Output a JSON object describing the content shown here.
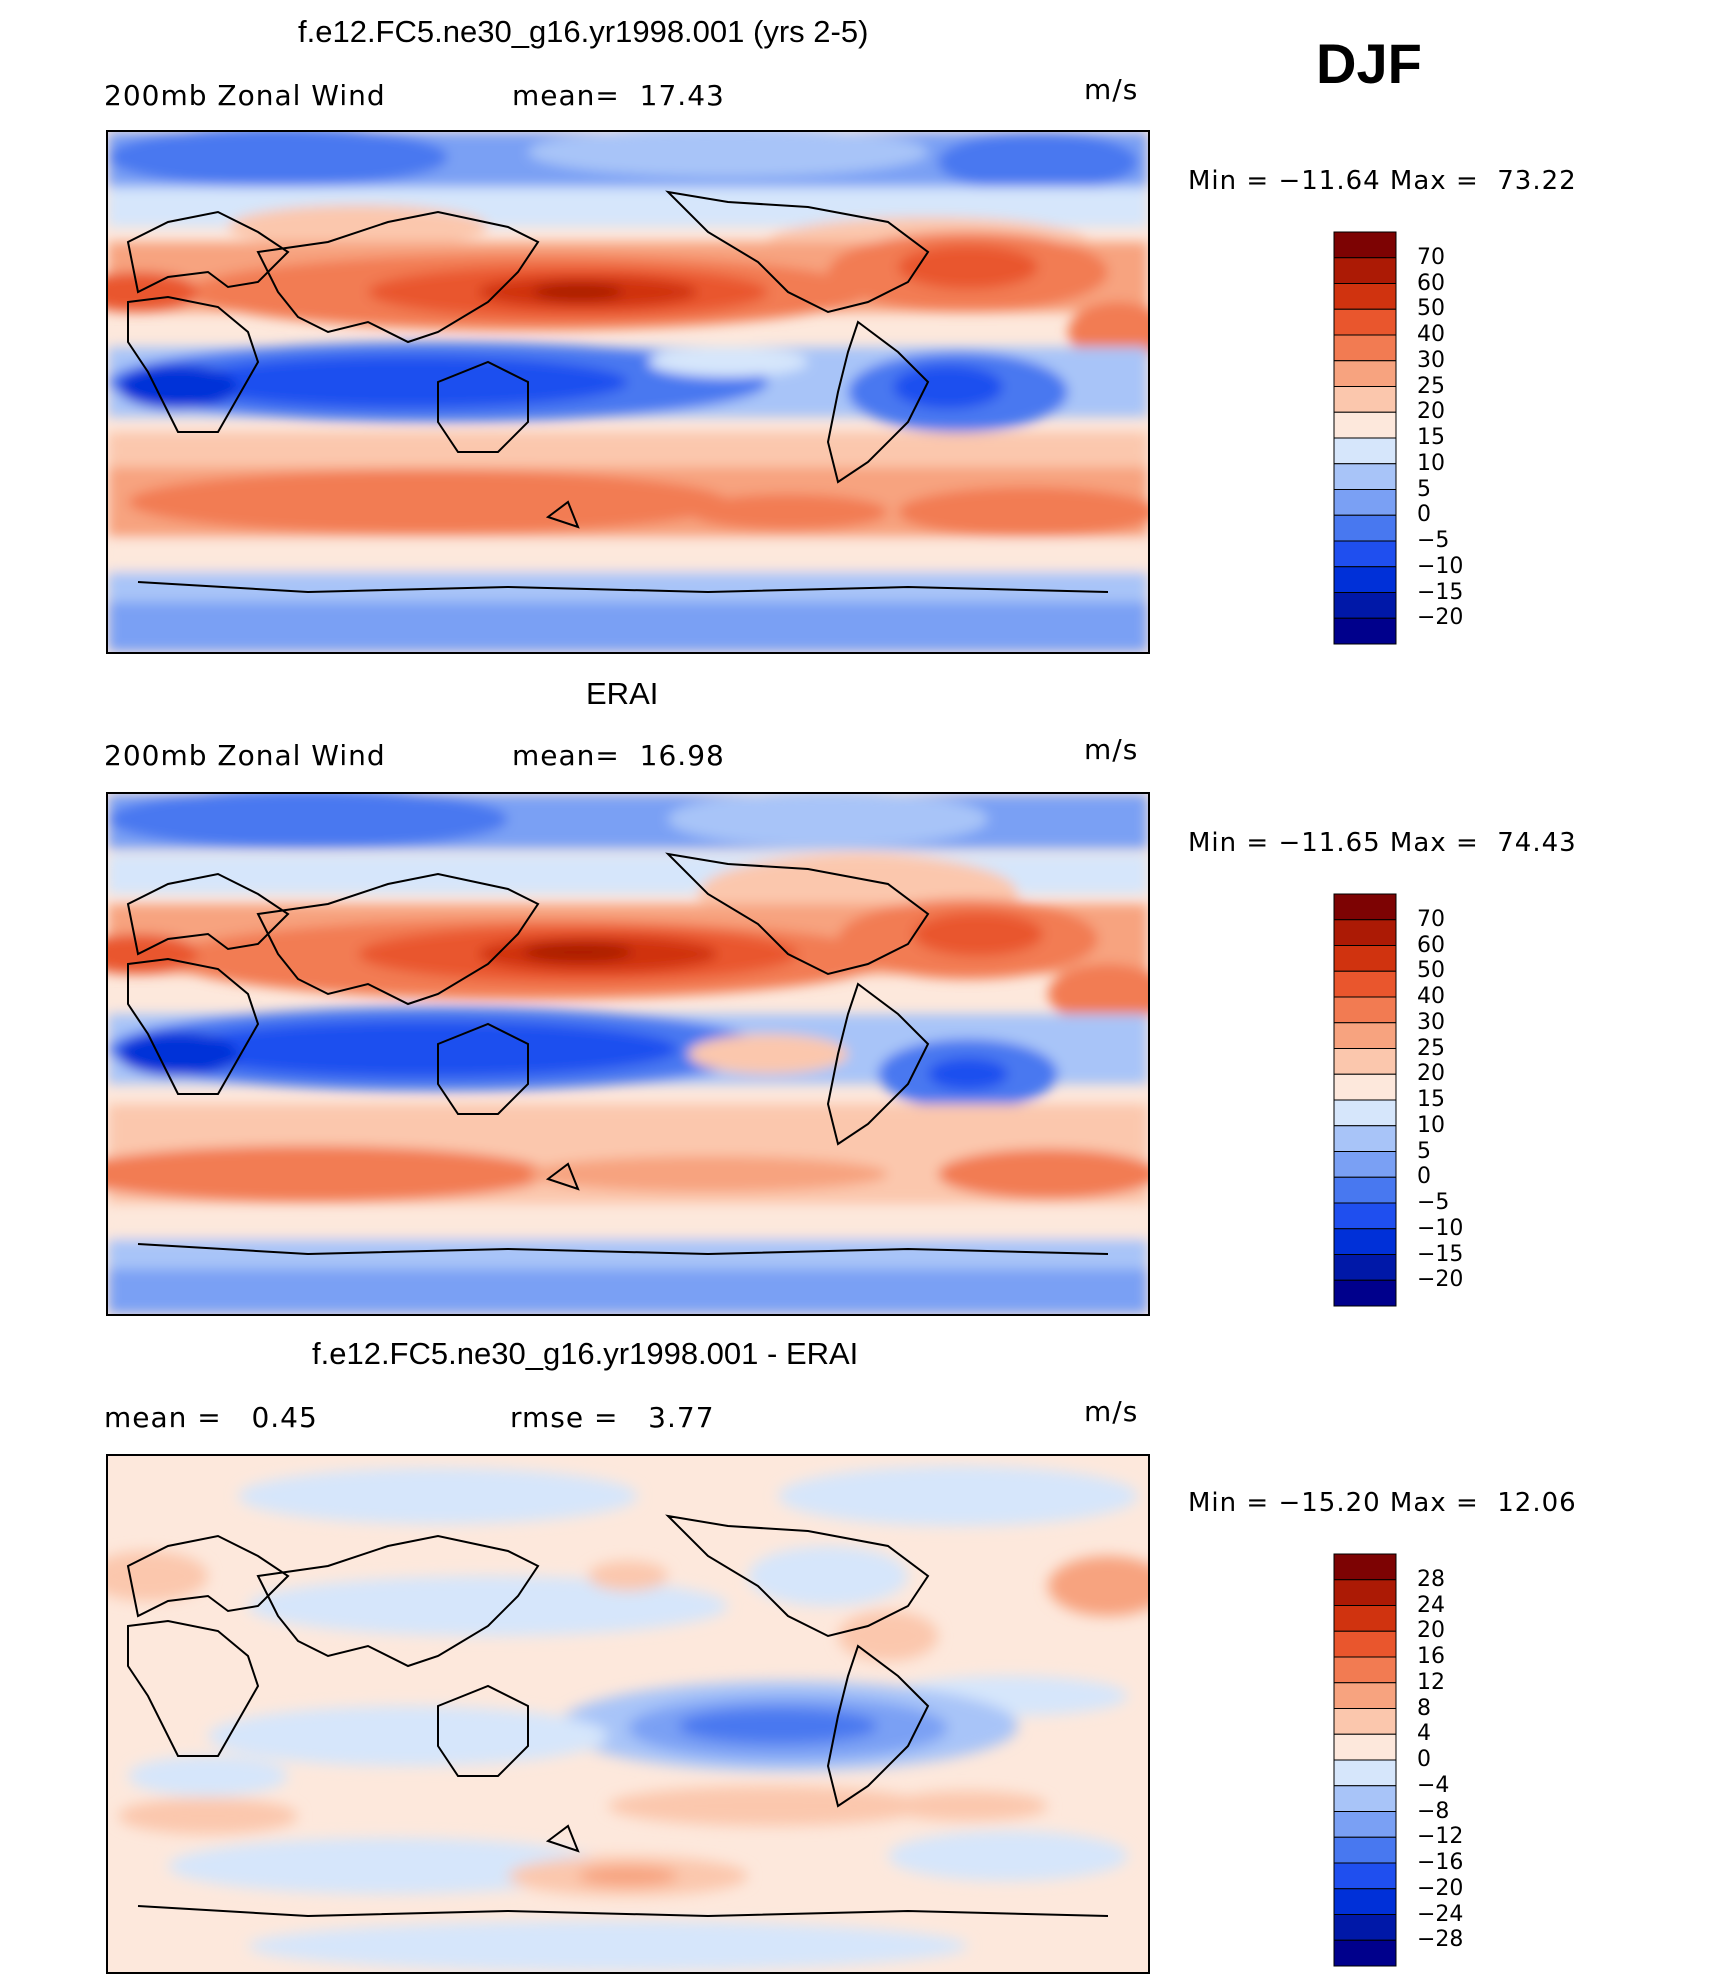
{
  "season": "DJF",
  "palette_full": [
    "#00008c",
    "#0018a8",
    "#0030d8",
    "#1f4fef",
    "#4878f0",
    "#7aa0f4",
    "#a8c4f8",
    "#d6e6fb",
    "#fde8dc",
    "#fbc7ad",
    "#f7a37f",
    "#f27b52",
    "#e9562d",
    "#d0330f",
    "#ac1a05",
    "#7d0303"
  ],
  "panels": [
    {
      "id": "model",
      "title": "f.e12.FC5.ne30_g16.yr1998.001 (yrs 2-5)",
      "left_label": "200mb Zonal Wind",
      "center_label": "mean=  17.43",
      "units": "m/s",
      "minmax": "Min = −11.64 Max =  73.22",
      "colorbar_labels": [
        "70",
        "60",
        "50",
        "40",
        "30",
        "25",
        "20",
        "15",
        "10",
        "5",
        "0",
        "−5",
        "−10",
        "−15",
        "−20"
      ]
    },
    {
      "id": "obs",
      "title": "ERAI",
      "left_label": "200mb Zonal Wind",
      "center_label": "mean=  16.98",
      "units": "m/s",
      "minmax": "Min = −11.65 Max =  74.43",
      "colorbar_labels": [
        "70",
        "60",
        "50",
        "40",
        "30",
        "25",
        "20",
        "15",
        "10",
        "5",
        "0",
        "−5",
        "−10",
        "−15",
        "−20"
      ]
    },
    {
      "id": "diff",
      "title": "f.e12.FC5.ne30_g16.yr1998.001 - ERAI",
      "left_label": "mean =   0.45",
      "center_label": "rmse =   3.77",
      "units": "m/s",
      "minmax": "Min = −15.20 Max =  12.06",
      "colorbar_labels": [
        "28",
        "24",
        "20",
        "16",
        "12",
        "8",
        "4",
        "0",
        "−4",
        "−8",
        "−12",
        "−16",
        "−20",
        "−24",
        "−28"
      ]
    }
  ]
}
